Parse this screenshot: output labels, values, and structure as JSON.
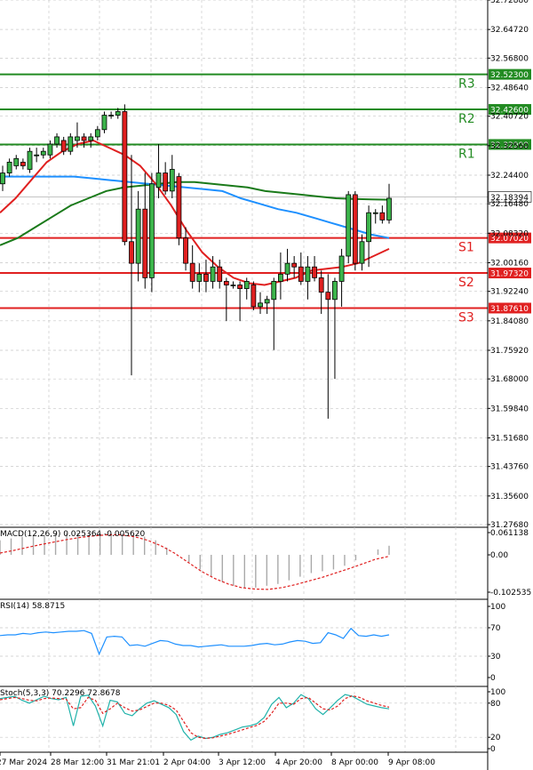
{
  "chart_data": [
    {
      "type": "candlestick",
      "price_axis": {
        "min": 31.2768,
        "max": 32.7288,
        "ticks": [
          "32.72880",
          "32.64720",
          "32.56800",
          "32.48640",
          "32.40720",
          "32.32560",
          "32.24400",
          "32.16480",
          "32.08320",
          "32.00160",
          "31.92240",
          "31.84080",
          "31.75920",
          "31.68000",
          "31.59840",
          "31.51680",
          "31.43760",
          "31.35600",
          "31.27680"
        ]
      },
      "current_price": "32.18394",
      "levels": [
        {
          "name": "R3",
          "value": 32.523,
          "label": "32.52300",
          "color": "#228b22"
        },
        {
          "name": "R2",
          "value": 32.426,
          "label": "32.42600",
          "color": "#228b22"
        },
        {
          "name": "R1",
          "value": 32.329,
          "label": "32.32900",
          "color": "#228b22"
        },
        {
          "name": "S1",
          "value": 32.0702,
          "label": "32.07020",
          "color": "#e02020"
        },
        {
          "name": "S2",
          "value": 31.9732,
          "label": "31.97320",
          "color": "#e02020"
        },
        {
          "name": "S3",
          "value": 31.8761,
          "label": "31.87610",
          "color": "#e02020"
        }
      ],
      "x_labels": [
        "27 Mar 2024",
        "28 Mar 12:00",
        "31 Mar 21:01",
        "2 Apr 04:00",
        "3 Apr 12:00",
        "4 Apr 20:00",
        "8 Apr 00:00",
        "9 Apr 08:00"
      ],
      "candles": [
        {
          "o": 32.22,
          "h": 32.27,
          "l": 32.2,
          "c": 32.25
        },
        {
          "o": 32.25,
          "h": 32.29,
          "l": 32.24,
          "c": 32.28
        },
        {
          "o": 32.27,
          "h": 32.3,
          "l": 32.26,
          "c": 32.29
        },
        {
          "o": 32.28,
          "h": 32.29,
          "l": 32.26,
          "c": 32.27
        },
        {
          "o": 32.26,
          "h": 32.32,
          "l": 32.25,
          "c": 32.31
        },
        {
          "o": 32.3,
          "h": 32.32,
          "l": 32.28,
          "c": 32.3
        },
        {
          "o": 32.3,
          "h": 32.32,
          "l": 32.29,
          "c": 32.31
        },
        {
          "o": 32.3,
          "h": 32.34,
          "l": 32.29,
          "c": 32.33
        },
        {
          "o": 32.33,
          "h": 32.36,
          "l": 32.32,
          "c": 32.35
        },
        {
          "o": 32.34,
          "h": 32.35,
          "l": 32.3,
          "c": 32.31
        },
        {
          "o": 32.31,
          "h": 32.36,
          "l": 32.3,
          "c": 32.35
        },
        {
          "o": 32.34,
          "h": 32.39,
          "l": 32.32,
          "c": 32.35
        },
        {
          "o": 32.35,
          "h": 32.36,
          "l": 32.32,
          "c": 32.34
        },
        {
          "o": 32.34,
          "h": 32.36,
          "l": 32.32,
          "c": 32.35
        },
        {
          "o": 32.35,
          "h": 32.38,
          "l": 32.34,
          "c": 32.37
        },
        {
          "o": 32.37,
          "h": 32.42,
          "l": 32.36,
          "c": 32.41
        },
        {
          "o": 32.41,
          "h": 32.42,
          "l": 32.4,
          "c": 32.41
        },
        {
          "o": 32.41,
          "h": 32.43,
          "l": 32.4,
          "c": 32.42
        },
        {
          "o": 32.42,
          "h": 32.44,
          "l": 32.05,
          "c": 32.06
        },
        {
          "o": 32.06,
          "h": 32.3,
          "l": 31.69,
          "c": 32.0
        },
        {
          "o": 32.0,
          "h": 32.2,
          "l": 31.95,
          "c": 32.15
        },
        {
          "o": 32.15,
          "h": 32.25,
          "l": 31.93,
          "c": 31.96
        },
        {
          "o": 31.96,
          "h": 32.25,
          "l": 31.92,
          "c": 32.22
        },
        {
          "o": 32.21,
          "h": 32.33,
          "l": 32.18,
          "c": 32.25
        },
        {
          "o": 32.25,
          "h": 32.28,
          "l": 32.19,
          "c": 32.2
        },
        {
          "o": 32.2,
          "h": 32.3,
          "l": 32.18,
          "c": 32.26
        },
        {
          "o": 32.24,
          "h": 32.25,
          "l": 32.05,
          "c": 32.07
        },
        {
          "o": 32.07,
          "h": 32.1,
          "l": 31.98,
          "c": 32.0
        },
        {
          "o": 32.0,
          "h": 32.05,
          "l": 31.93,
          "c": 31.95
        },
        {
          "o": 31.95,
          "h": 32.0,
          "l": 31.92,
          "c": 31.97
        },
        {
          "o": 31.97,
          "h": 32.01,
          "l": 31.92,
          "c": 31.95
        },
        {
          "o": 31.95,
          "h": 32.02,
          "l": 31.93,
          "c": 31.99
        },
        {
          "o": 31.99,
          "h": 32.01,
          "l": 31.93,
          "c": 31.95
        },
        {
          "o": 31.95,
          "h": 31.96,
          "l": 31.84,
          "c": 31.94
        },
        {
          "o": 31.94,
          "h": 31.95,
          "l": 31.93,
          "c": 31.94
        },
        {
          "o": 31.94,
          "h": 31.95,
          "l": 31.84,
          "c": 31.93
        },
        {
          "o": 31.93,
          "h": 31.96,
          "l": 31.9,
          "c": 31.95
        },
        {
          "o": 31.94,
          "h": 31.95,
          "l": 31.87,
          "c": 31.88
        },
        {
          "o": 31.88,
          "h": 31.92,
          "l": 31.86,
          "c": 31.89
        },
        {
          "o": 31.89,
          "h": 31.91,
          "l": 31.86,
          "c": 31.9
        },
        {
          "o": 31.9,
          "h": 31.96,
          "l": 31.76,
          "c": 31.95
        },
        {
          "o": 31.95,
          "h": 32.03,
          "l": 31.9,
          "c": 31.97
        },
        {
          "o": 31.97,
          "h": 32.04,
          "l": 31.95,
          "c": 32.0
        },
        {
          "o": 32.0,
          "h": 32.02,
          "l": 31.96,
          "c": 31.99
        },
        {
          "o": 31.99,
          "h": 32.03,
          "l": 31.94,
          "c": 31.95
        },
        {
          "o": 31.95,
          "h": 32.02,
          "l": 31.9,
          "c": 31.99
        },
        {
          "o": 31.99,
          "h": 32.02,
          "l": 31.95,
          "c": 31.96
        },
        {
          "o": 31.96,
          "h": 31.98,
          "l": 31.86,
          "c": 31.92
        },
        {
          "o": 31.92,
          "h": 31.97,
          "l": 31.57,
          "c": 31.9
        },
        {
          "o": 31.9,
          "h": 31.96,
          "l": 31.68,
          "c": 31.95
        },
        {
          "o": 31.95,
          "h": 32.04,
          "l": 31.88,
          "c": 32.02
        },
        {
          "o": 32.02,
          "h": 32.2,
          "l": 32.0,
          "c": 32.19
        },
        {
          "o": 32.19,
          "h": 32.2,
          "l": 31.98,
          "c": 32.0
        },
        {
          "o": 32.0,
          "h": 32.08,
          "l": 31.98,
          "c": 32.06
        },
        {
          "o": 32.06,
          "h": 32.16,
          "l": 31.99,
          "c": 32.14
        },
        {
          "o": 32.14,
          "h": 32.15,
          "l": 32.11,
          "c": 32.14
        },
        {
          "o": 32.14,
          "h": 32.16,
          "l": 32.11,
          "c": 32.12
        },
        {
          "o": 32.12,
          "h": 32.22,
          "l": 32.11,
          "c": 32.18
        }
      ],
      "ma_blue": [
        32.24,
        32.24,
        32.24,
        32.24,
        32.24,
        32.235,
        32.23,
        32.225,
        32.22,
        32.215,
        32.21,
        32.205,
        32.2,
        32.18,
        32.165,
        32.15,
        32.14,
        32.125,
        32.11,
        32.095,
        32.08,
        32.07
      ],
      "ma_green": [
        32.05,
        32.07,
        32.1,
        32.13,
        32.16,
        32.18,
        32.2,
        32.21,
        32.215,
        32.22,
        32.225,
        32.225,
        32.22,
        32.215,
        32.21,
        32.2,
        32.195,
        32.19,
        32.185,
        32.18,
        32.178,
        32.177,
        32.176
      ],
      "ma_red": [
        32.14,
        32.18,
        32.23,
        32.28,
        32.31,
        32.33,
        32.34,
        32.32,
        32.3,
        32.27,
        32.22,
        32.16,
        32.09,
        32.03,
        31.99,
        31.96,
        31.945,
        31.94,
        31.95,
        31.96,
        31.98,
        31.985,
        31.99,
        32.0,
        32.02,
        32.04
      ],
      "ma_note": "",
      "colors": {
        "up": "#3cb44b",
        "down": "#e02020",
        "blue_ma": "#1e90ff",
        "green_ma": "#1a7a1a",
        "red_ma": "#e02020",
        "grid": "#c8c8c8"
      }
    },
    {
      "type": "macd",
      "label": "MACD(12,26,9) 0.025364 -0.005620",
      "ticks": [
        "0.061138",
        "0.00",
        "-0.102535"
      ],
      "range": [
        -0.1025,
        0.0611
      ],
      "histogram": [
        0.04,
        0.045,
        0.05,
        0.052,
        0.055,
        0.058,
        0.059,
        0.06,
        0.06,
        0.06,
        0.059,
        0.058,
        0.055,
        0.05,
        0.04,
        0.02,
        0.0,
        -0.02,
        -0.04,
        -0.06,
        -0.075,
        -0.085,
        -0.09,
        -0.09,
        -0.085,
        -0.08,
        -0.07,
        -0.06,
        -0.05,
        -0.045,
        -0.04,
        -0.03,
        -0.015,
        0.0,
        0.015,
        0.025
      ],
      "signal": [
        0.005,
        0.012,
        0.02,
        0.028,
        0.035,
        0.042,
        0.048,
        0.052,
        0.055,
        0.055,
        0.05,
        0.04,
        0.025,
        0.005,
        -0.02,
        -0.045,
        -0.065,
        -0.08,
        -0.09,
        -0.094,
        -0.095,
        -0.09,
        -0.082,
        -0.072,
        -0.062,
        -0.05,
        -0.038,
        -0.025,
        -0.012,
        -0.004
      ]
    },
    {
      "type": "line",
      "label": "RSI(14) 58.8715",
      "ticks": [
        "100",
        "70",
        "30",
        "0"
      ],
      "range": [
        0,
        100
      ],
      "values": [
        59,
        60,
        60,
        62,
        61,
        63,
        64,
        63,
        64,
        65,
        65,
        66,
        62,
        33,
        57,
        58,
        57,
        45,
        46,
        44,
        48,
        52,
        51,
        47,
        45,
        45,
        43,
        44,
        45,
        46,
        44,
        44,
        44,
        45,
        47,
        48,
        46,
        47,
        50,
        52,
        51,
        48,
        49,
        63,
        60,
        55,
        69,
        59,
        58,
        60,
        58,
        60
      ]
    },
    {
      "type": "line",
      "label": "Stoch(5,3,3) 70.2296 72.8678",
      "ticks": [
        "100",
        "80",
        "20",
        "0"
      ],
      "range": [
        0,
        100
      ],
      "k": [
        88,
        90,
        92,
        85,
        80,
        86,
        92,
        88,
        86,
        90,
        40,
        92,
        94,
        75,
        40,
        85,
        82,
        62,
        58,
        70,
        80,
        84,
        78,
        72,
        60,
        30,
        15,
        22,
        18,
        20,
        25,
        28,
        33,
        38,
        40,
        44,
        55,
        78,
        90,
        72,
        80,
        95,
        88,
        70,
        60,
        72,
        85,
        95,
        92,
        85,
        78,
        75,
        72,
        70
      ],
      "d": [
        86,
        88,
        90,
        88,
        85,
        84,
        88,
        89,
        88,
        87,
        70,
        72,
        90,
        85,
        62,
        70,
        80,
        72,
        66,
        68,
        74,
        80,
        80,
        76,
        68,
        48,
        28,
        20,
        18,
        19,
        22,
        25,
        29,
        33,
        37,
        41,
        48,
        62,
        80,
        80,
        78,
        88,
        90,
        80,
        70,
        68,
        75,
        88,
        93,
        90,
        84,
        80,
        76,
        73
      ]
    }
  ]
}
